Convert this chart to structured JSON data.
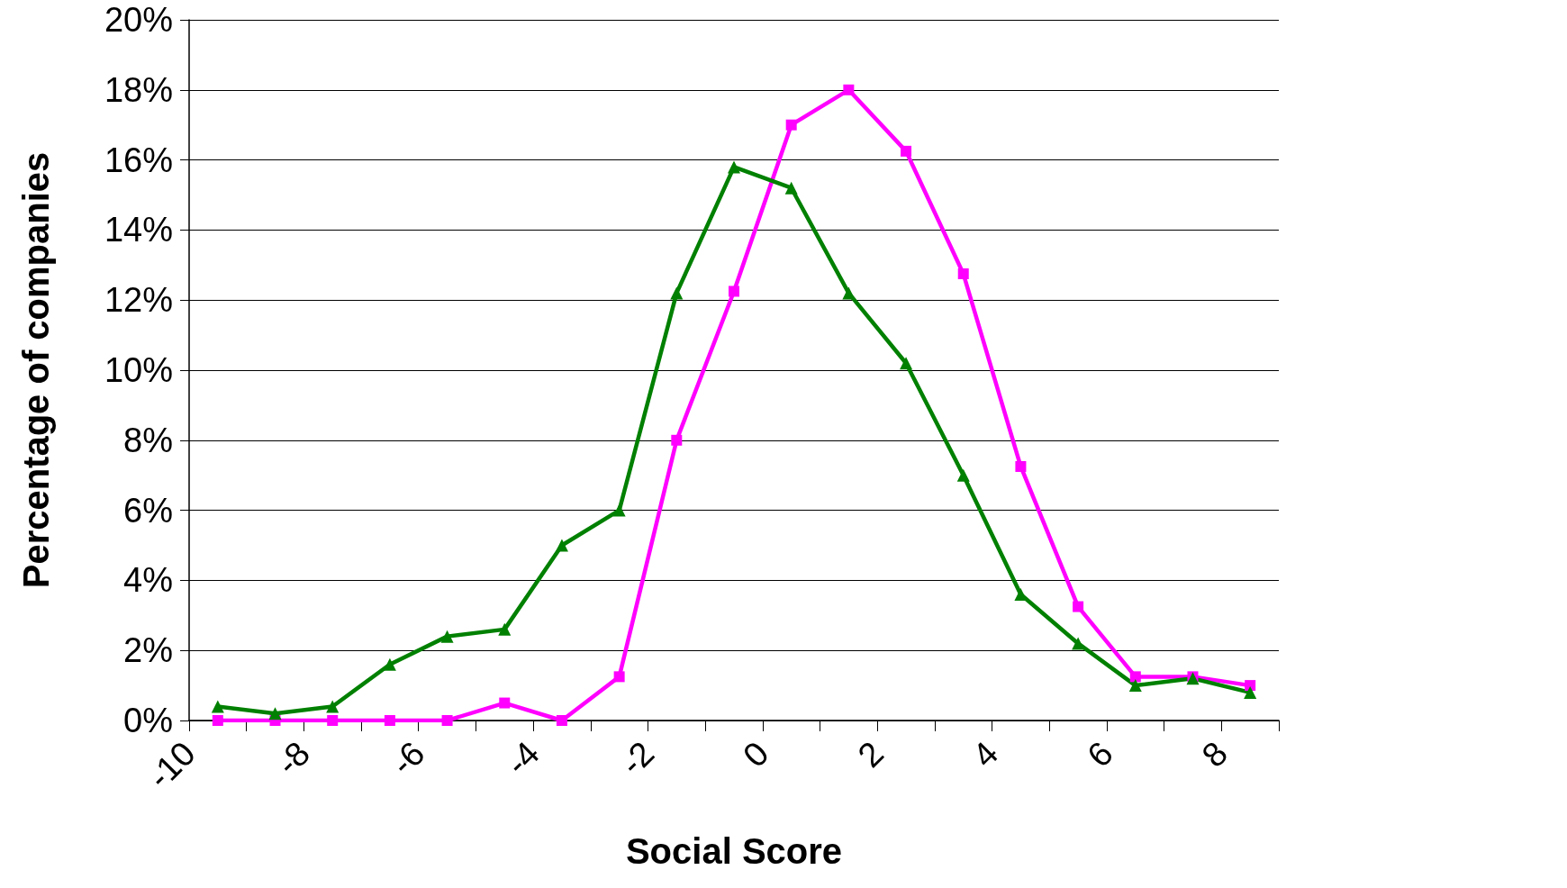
{
  "chart_data": {
    "type": "line",
    "xlabel": "Social Score",
    "ylabel": "Percentage of companies",
    "x": [
      -9.5,
      -8.5,
      -7.5,
      -6.5,
      -5.5,
      -4.5,
      -3.5,
      -2.5,
      -1.5,
      -0.5,
      0.5,
      1.5,
      2.5,
      3.5,
      4.5,
      5.5,
      6.5,
      7.5,
      8.5
    ],
    "series": [
      {
        "color": "#ff00ff",
        "marker": "square",
        "values": [
          0,
          0,
          0,
          0,
          0,
          0.5,
          0,
          1.25,
          8,
          12.25,
          17,
          18,
          16.25,
          12.75,
          7.25,
          3.25,
          1.25,
          1.25,
          1.0
        ]
      },
      {
        "color": "#008000",
        "marker": "triangle",
        "values": [
          0.4,
          0.2,
          0.4,
          1.6,
          2.4,
          2.6,
          5,
          6,
          12.2,
          15.8,
          15.2,
          12.2,
          10.2,
          7,
          3.6,
          2.2,
          1.0,
          1.2,
          0.8
        ]
      }
    ],
    "xlim": [
      -10,
      9
    ],
    "xticks": [
      -10,
      {
        "value": -9,
        "label": null
      },
      -8,
      {
        "value": -7,
        "label": null
      },
      -6,
      {
        "value": -5,
        "label": null
      },
      -4,
      {
        "value": -3,
        "label": null
      },
      -2,
      {
        "value": -1,
        "label": null
      },
      0,
      {
        "value": 1,
        "label": null
      },
      2,
      {
        "value": 3,
        "label": null
      },
      4,
      {
        "value": 5,
        "label": null
      },
      6,
      {
        "value": 7,
        "label": null
      },
      8,
      {
        "value": 9,
        "label": null
      }
    ],
    "ylim": [
      0,
      20
    ],
    "yticks": [
      {
        "value": 0,
        "label": "0%"
      },
      {
        "value": 2,
        "label": "2%"
      },
      {
        "value": 4,
        "label": "4%"
      },
      {
        "value": 6,
        "label": "6%"
      },
      {
        "value": 8,
        "label": "8%"
      },
      {
        "value": 10,
        "label": "10%"
      },
      {
        "value": 12,
        "label": "12%"
      },
      {
        "value": 14,
        "label": "14%"
      },
      {
        "value": 16,
        "label": "16%"
      },
      {
        "value": 18,
        "label": "18%"
      },
      {
        "value": 20,
        "label": "20%"
      }
    ],
    "grid": "y",
    "legend": false,
    "line_style": "solid"
  }
}
